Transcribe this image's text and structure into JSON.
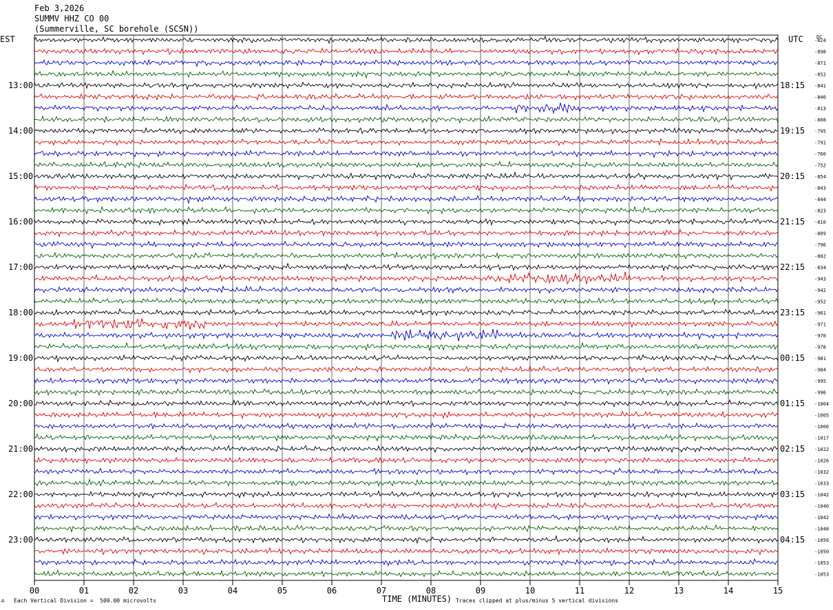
{
  "header": {
    "date": "Feb 3,2026",
    "station": "SUMMV HHZ CO 00",
    "location": "(Summerville, SC borehole (SCSN))"
  },
  "labels": {
    "left_timezone": "EST",
    "right_timezone": "UTC",
    "dc_header": "DC",
    "footer_scale": "Each Vertical Division =  500.00 microvolts",
    "footer_clip": "Traces clipped at plus/minus 5 vertical divisions",
    "footer_mark": "A"
  },
  "colors": {
    "trace_cycle": [
      "#000000",
      "#e00000",
      "#0000d0",
      "#006000"
    ],
    "grid": "#000000",
    "background": "#ffffff"
  },
  "chart_data": {
    "type": "line",
    "subtype": "helicorder",
    "xlabel": "TIME (MINUTES)",
    "x_ticks": [
      "00",
      "01",
      "02",
      "03",
      "04",
      "05",
      "06",
      "07",
      "08",
      "09",
      "10",
      "11",
      "12",
      "13",
      "14",
      "15"
    ],
    "xlim": [
      0,
      15
    ],
    "minutes_per_row": 15,
    "left_hour_labels": [
      "13:00",
      "14:00",
      "15:00",
      "16:00",
      "17:00",
      "18:00",
      "19:00",
      "20:00",
      "21:00",
      "22:00",
      "23:00"
    ],
    "right_hour_labels": [
      "18:15",
      "19:15",
      "20:15",
      "21:15",
      "22:15",
      "23:15",
      "00:15",
      "01:15",
      "02:15",
      "03:15",
      "04:15"
    ],
    "dc_offsets": [
      -824,
      -898,
      -871,
      -852,
      -841,
      -840,
      -813,
      -808,
      -795,
      -791,
      -760,
      -752,
      -854,
      -843,
      -844,
      -823,
      -810,
      -809,
      -796,
      -802,
      -834,
      -943,
      -942,
      -952,
      -961,
      -971,
      -970,
      -978,
      -981,
      -984,
      -995,
      -996,
      -1004,
      -1005,
      -1006,
      -1017,
      -1022,
      -1026,
      -1032,
      -1033,
      -1042,
      -1040,
      -1042,
      -1048,
      -1056,
      -1050,
      -1053,
      -1053
    ],
    "trace_rows": 48,
    "events": [
      {
        "row": 6,
        "start_min": 9.7,
        "end_min": 11.0,
        "label": "increased amplitude burst"
      },
      {
        "row": 21,
        "start_min": 9.5,
        "end_min": 12.0,
        "label": "increased amplitude burst"
      },
      {
        "row": 25,
        "start_min": 0.8,
        "end_min": 3.5,
        "label": "increased amplitude burst"
      },
      {
        "row": 26,
        "start_min": 7.2,
        "end_min": 9.5,
        "label": "increased amplitude burst"
      }
    ]
  }
}
